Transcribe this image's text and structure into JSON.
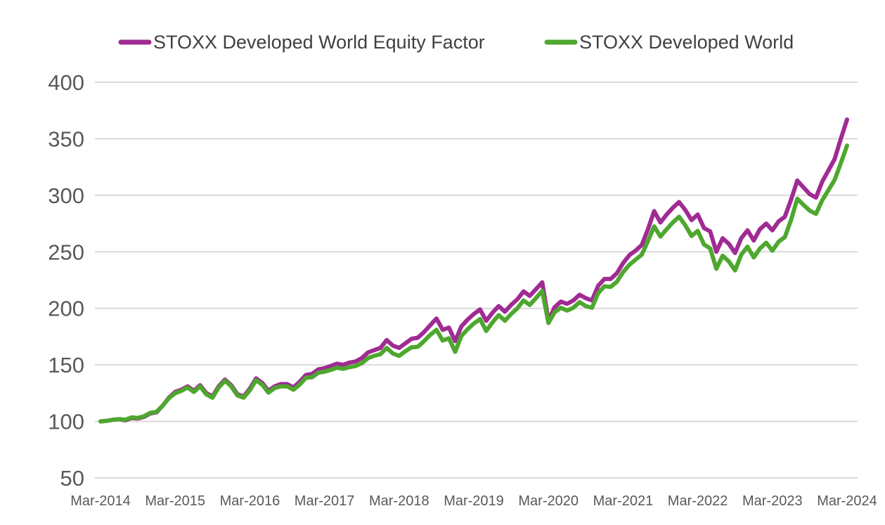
{
  "chart_data": {
    "type": "line",
    "title": "",
    "frequency": "monthly",
    "x_start": "Mar-2014",
    "x_end": "Mar-2024",
    "grid": "horizontal",
    "legend_position": "top",
    "x_axis": {
      "labels": [
        "Mar-2014",
        "Mar-2015",
        "Mar-2016",
        "Mar-2017",
        "Mar-2018",
        "Mar-2019",
        "Mar-2020",
        "Mar-2021",
        "Mar-2022",
        "Mar-2023",
        "Mar-2024"
      ]
    },
    "y_axis": {
      "min": 50,
      "max": 400,
      "step": 50,
      "ticks": [
        400,
        350,
        300,
        250,
        200,
        150,
        100,
        50
      ]
    },
    "series": [
      {
        "name": "STOXX Developed World Equity Factor",
        "color": "#A02B93",
        "values": [
          100,
          100.5,
          101.5,
          102,
          101,
          103,
          102.5,
          104,
          107,
          108,
          114,
          121,
          126,
          128,
          131,
          127,
          132,
          125,
          122,
          131,
          137,
          132,
          124,
          122,
          129,
          138,
          134,
          127,
          131,
          133,
          133,
          130,
          135,
          141,
          142,
          146,
          147,
          149,
          151,
          150,
          152,
          153,
          156,
          161,
          163,
          165,
          172,
          167,
          165,
          169,
          173,
          174,
          179,
          185,
          191,
          181,
          183,
          171,
          184,
          190,
          195,
          199,
          189,
          196,
          202,
          197,
          203,
          208,
          215,
          211,
          217,
          223,
          189,
          201,
          206,
          204,
          207,
          212,
          209,
          207,
          220,
          226,
          226,
          231,
          240,
          247,
          251,
          256,
          270,
          286,
          276,
          283,
          289,
          294,
          287,
          278,
          283,
          271,
          268,
          250,
          262,
          257,
          249,
          262,
          269,
          260,
          270,
          275,
          269,
          277,
          281,
          296,
          313,
          307,
          301,
          298,
          312,
          322,
          332,
          350,
          367
        ]
      },
      {
        "name": "STOXX Developed World",
        "color": "#4EA72E",
        "values": [
          100,
          100.5,
          101.5,
          102,
          101.5,
          103.5,
          103,
          104.5,
          107.5,
          108.5,
          114,
          120.5,
          125,
          127,
          130,
          126,
          131,
          124,
          121,
          130,
          136,
          131,
          123,
          121,
          127.5,
          136.5,
          132.5,
          125.5,
          129.5,
          131,
          131,
          128,
          132.5,
          138.5,
          139,
          143,
          144,
          145.5,
          147.5,
          146.5,
          148,
          149,
          151.5,
          156,
          158,
          159.5,
          165,
          160,
          158,
          162,
          165.5,
          166,
          171,
          176.5,
          181,
          171.5,
          173.5,
          161.5,
          175.5,
          181.5,
          186.5,
          190.5,
          180,
          187.5,
          194,
          189,
          195,
          200,
          207,
          203,
          209,
          215.5,
          187,
          196.5,
          200.5,
          198,
          200.5,
          205.5,
          202,
          200.5,
          213.5,
          219.5,
          219,
          223.5,
          232,
          238.5,
          243,
          247.5,
          259.5,
          272.5,
          263.5,
          270,
          276,
          281,
          273.5,
          264,
          268.5,
          256.5,
          253,
          235,
          246.5,
          241.5,
          233.5,
          247.5,
          254.5,
          245,
          253,
          258,
          251,
          259,
          263,
          278,
          297,
          291.5,
          286.5,
          283.5,
          295.5,
          304.5,
          313.5,
          328.5,
          344
        ]
      }
    ],
    "style": {
      "gridline_color": "#D9D9D9",
      "axis_label_color": "#595959",
      "legend_text_color": "#404040",
      "background_color": "#FFFFFF"
    }
  }
}
